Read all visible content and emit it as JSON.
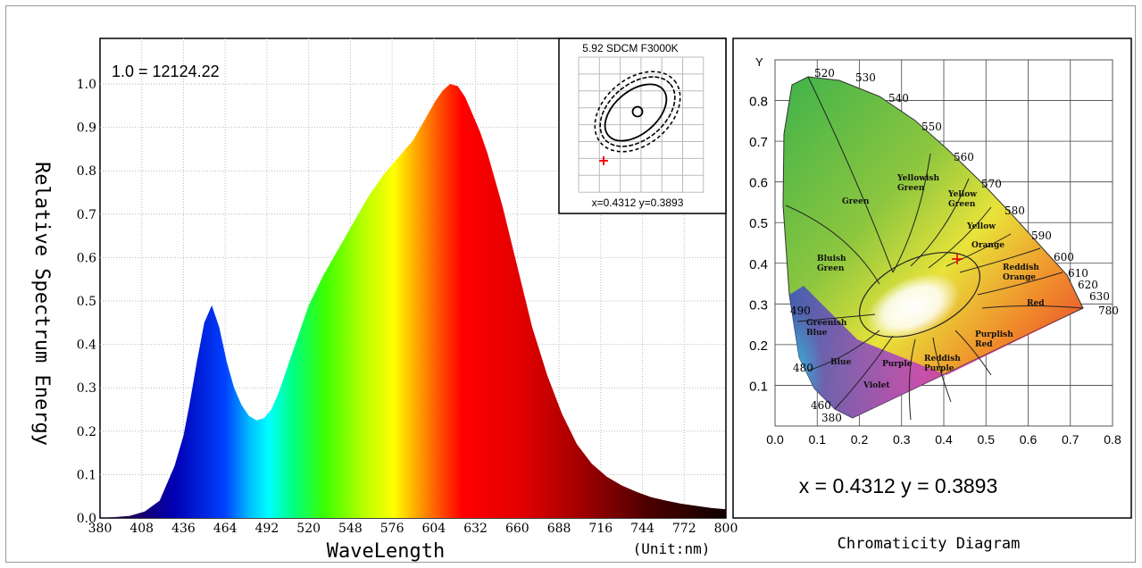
{
  "spectrum": {
    "scale_label": "1.0 = 12124.22",
    "ylabel": "Relative Spectrum Energy",
    "xlabel": "WaveLength",
    "unit_label": "(Unit:nm)",
    "y_ticks": [
      "0.0",
      "0.1",
      "0.2",
      "0.3",
      "0.4",
      "0.5",
      "0.6",
      "0.7",
      "0.8",
      "0.9",
      "1.0"
    ],
    "x_ticks": [
      "380",
      "408",
      "436",
      "464",
      "492",
      "520",
      "548",
      "576",
      "604",
      "632",
      "660",
      "688",
      "716",
      "744",
      "772",
      "800"
    ]
  },
  "inset": {
    "title": "5.92 SDCM  F3000K",
    "coords": "x=0.4312  y=0.3893"
  },
  "cie": {
    "caption": "Chromaticity Diagram",
    "coords_label": "x = 0.4312   y = 0.3893",
    "y_axis_label": "Y",
    "x_ticks": [
      "0.0",
      "0.1",
      "0.2",
      "0.3",
      "0.4",
      "0.5",
      "0.6",
      "0.7",
      "0.8"
    ],
    "y_ticks": [
      "0.1",
      "0.2",
      "0.3",
      "0.4",
      "0.5",
      "0.6",
      "0.7",
      "0.8"
    ],
    "wavelength_labels": [
      "520",
      "530",
      "540",
      "550",
      "560",
      "570",
      "580",
      "590",
      "600",
      "610",
      "620",
      "630",
      "780",
      "490",
      "480",
      "460",
      "380"
    ],
    "region_labels": [
      "Green",
      "Yellowish Green",
      "Yellow Green",
      "Yellow",
      "Orange",
      "Bluish Green",
      "Reddish Orange",
      "Red",
      "Greenish Blue",
      "Blue",
      "Purple",
      "Reddish Purple",
      "Purplish Red",
      "Violet"
    ],
    "marker": {
      "x": 0.4312,
      "y": 0.3893
    }
  },
  "chart_data": {
    "type": "area",
    "xlabel": "WaveLength",
    "ylabel": "Relative Spectrum Energy",
    "xlim": [
      380,
      800
    ],
    "ylim": [
      0,
      1.0
    ],
    "x": [
      380,
      390,
      400,
      410,
      420,
      430,
      436,
      440,
      445,
      450,
      455,
      460,
      465,
      470,
      475,
      480,
      485,
      490,
      495,
      500,
      505,
      510,
      515,
      520,
      530,
      540,
      550,
      560,
      570,
      580,
      590,
      600,
      605,
      610,
      615,
      620,
      625,
      630,
      635,
      640,
      650,
      660,
      670,
      680,
      690,
      700,
      710,
      720,
      730,
      740,
      750,
      760,
      770,
      780,
      790,
      800
    ],
    "series": [
      {
        "values": [
          0.0,
          0.002,
          0.005,
          0.015,
          0.04,
          0.12,
          0.19,
          0.26,
          0.36,
          0.45,
          0.49,
          0.44,
          0.36,
          0.3,
          0.26,
          0.235,
          0.225,
          0.23,
          0.25,
          0.29,
          0.34,
          0.39,
          0.44,
          0.49,
          0.56,
          0.62,
          0.68,
          0.74,
          0.79,
          0.83,
          0.87,
          0.93,
          0.96,
          0.985,
          1.0,
          0.995,
          0.97,
          0.93,
          0.89,
          0.84,
          0.72,
          0.58,
          0.44,
          0.33,
          0.24,
          0.17,
          0.125,
          0.095,
          0.075,
          0.06,
          0.048,
          0.04,
          0.033,
          0.028,
          0.023,
          0.02
        ]
      }
    ]
  }
}
